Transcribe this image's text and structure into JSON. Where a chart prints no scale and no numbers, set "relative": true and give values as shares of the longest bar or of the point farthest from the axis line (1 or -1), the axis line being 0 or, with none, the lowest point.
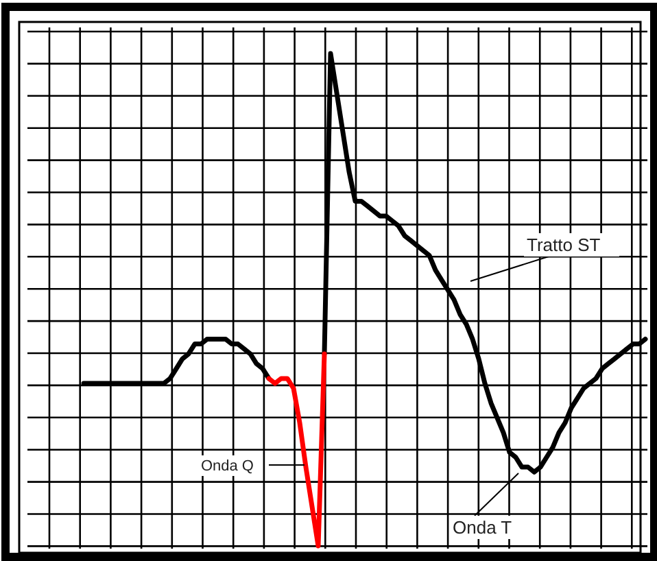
{
  "chart_data": {
    "type": "line",
    "relative": true,
    "grid": true,
    "categories": [
      null,
      null,
      null,
      null,
      null,
      null,
      null,
      null,
      null,
      null,
      null,
      null,
      null,
      null,
      null,
      null,
      null,
      null,
      null,
      null,
      null,
      null,
      null,
      null,
      null,
      null,
      null,
      null,
      null,
      null,
      null,
      null,
      null,
      null,
      null,
      null,
      null,
      null,
      null,
      null,
      null,
      null,
      null,
      null,
      null,
      null,
      null,
      null,
      null,
      null,
      null,
      null,
      null,
      null,
      null,
      null,
      null,
      null,
      null,
      null,
      null,
      null,
      null,
      null,
      null,
      null,
      null,
      null,
      null,
      null,
      null,
      null,
      null,
      null,
      null,
      null,
      null,
      null,
      null,
      null,
      null,
      null,
      null,
      null,
      null,
      null,
      null,
      null,
      null,
      null,
      null,
      null
    ],
    "series": [
      {
        "color": "#000000",
        "values": [
          0.33,
          0.33,
          0.33,
          0.33,
          0.33,
          0.33,
          0.33,
          0.33,
          0.33,
          0.33,
          0.33,
          0.33,
          0.33,
          0.33,
          0.34,
          0.36,
          0.38,
          0.39,
          0.41,
          0.41,
          0.42,
          0.42,
          0.42,
          0.42,
          0.41,
          0.41,
          0.4,
          0.39,
          0.37,
          0.36,
          0.34,
          null,
          null,
          null,
          null,
          null,
          null,
          null,
          null,
          0.39,
          1,
          0.92,
          0.84,
          0.76,
          0.7,
          0.7,
          0.69,
          0.68,
          0.67,
          0.67,
          0.66,
          0.65,
          0.63,
          0.62,
          0.61,
          0.6,
          0.59,
          0.56,
          0.54,
          0.52,
          0.5,
          0.47,
          0.45,
          0.42,
          0.38,
          0.33,
          0.29,
          0.26,
          0.23,
          0.19,
          0.18,
          0.16,
          0.16,
          0.15,
          0.16,
          0.18,
          0.2,
          0.23,
          0.25,
          0.28,
          0.3,
          0.32,
          0.33,
          0.34,
          0.36,
          0.37,
          0.38,
          0.39,
          0.4,
          0.41,
          0.41,
          0.42
        ]
      },
      {
        "color": "#ff0000",
        "values": [
          null,
          null,
          null,
          null,
          null,
          null,
          null,
          null,
          null,
          null,
          null,
          null,
          null,
          null,
          null,
          null,
          null,
          null,
          null,
          null,
          null,
          null,
          null,
          null,
          null,
          null,
          null,
          null,
          null,
          null,
          0.34,
          0.33,
          0.34,
          0.34,
          0.32,
          0.25,
          0.16,
          0.08,
          0,
          0.39,
          null,
          null,
          null,
          null,
          null,
          null,
          null,
          null,
          null,
          null,
          null,
          null,
          null,
          null,
          null,
          null,
          null,
          null,
          null,
          null,
          null,
          null,
          null,
          null,
          null,
          null,
          null,
          null,
          null,
          null,
          null,
          null,
          null,
          null,
          null,
          null,
          null,
          null,
          null,
          null,
          null,
          null,
          null,
          null,
          null,
          null,
          null,
          null,
          null,
          null,
          null,
          null
        ]
      }
    ],
    "annotations": [
      "Tratto ST",
      "Onda Q",
      "Onda T"
    ]
  }
}
